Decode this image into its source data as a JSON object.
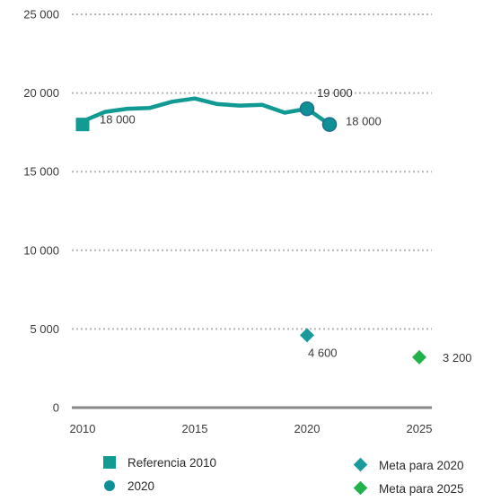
{
  "chart_data": {
    "type": "line",
    "title": "",
    "xlabel": "",
    "ylabel": "",
    "xlim": [
      2010,
      2025
    ],
    "ylim": [
      0,
      25000
    ],
    "x_ticks": [
      "2010",
      "2015",
      "2020",
      "2025"
    ],
    "y_ticks": [
      "0",
      "5 000",
      "10 000",
      "15 000",
      "20 000",
      "25 000"
    ],
    "grid": "dotted horizontal",
    "legend_placement": "bottom",
    "colors": {
      "line": "#119a94",
      "referencia": "#129b93",
      "marker_2020": "#0f8f96",
      "marker_2020_stroke": "#1d6f8e",
      "meta_2020": "#1a9a9a",
      "meta_2025": "#22b24c",
      "grid": "#b5b5b5",
      "axis": "#888888"
    },
    "series": [
      {
        "type": "line",
        "x": [
          2010,
          2011,
          2012,
          2013,
          2014,
          2015,
          2016,
          2017,
          2018,
          2019,
          2020,
          2021
        ],
        "y": [
          18200,
          18800,
          19000,
          19050,
          19450,
          19650,
          19300,
          19200,
          19250,
          18750,
          19000,
          18000
        ]
      },
      {
        "name": "Referencia 2010",
        "type": "point",
        "marker": "square",
        "x": 2010,
        "y": 18000,
        "label": "18 000"
      },
      {
        "name": "2020",
        "type": "point",
        "marker": "circle",
        "x": [
          2020,
          2021
        ],
        "y": [
          19000,
          18000
        ],
        "labels": [
          "19 000",
          "18 000"
        ]
      },
      {
        "name": "Meta para 2020",
        "type": "point",
        "marker": "diamond",
        "x": 2020,
        "y": 4600,
        "label": "4 600"
      },
      {
        "name": "Meta para 2025",
        "type": "point",
        "marker": "diamond",
        "x": 2025,
        "y": 3200,
        "label": "3 200"
      }
    ]
  }
}
